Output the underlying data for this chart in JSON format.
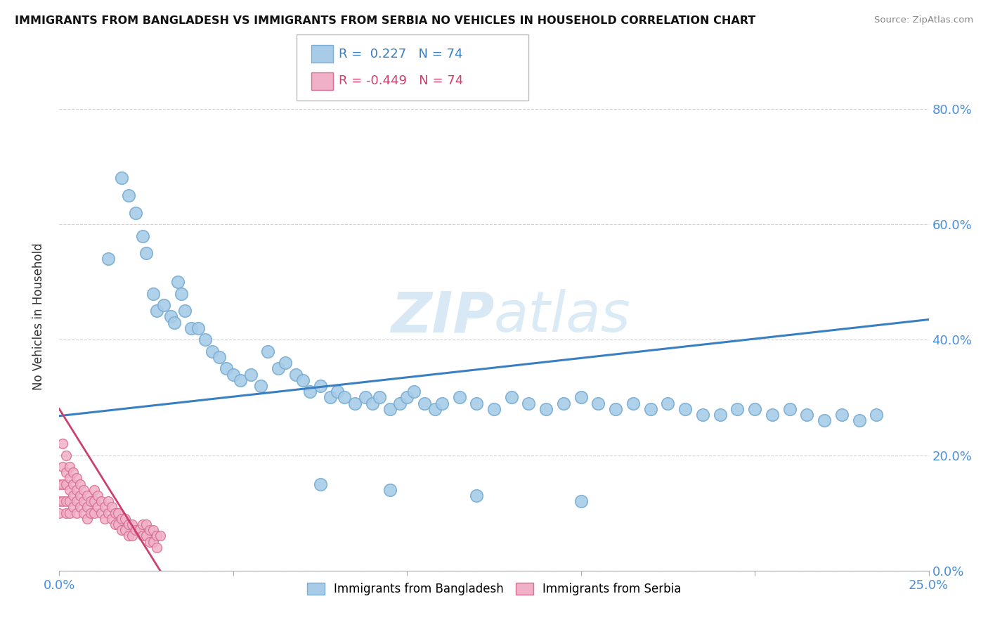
{
  "title": "IMMIGRANTS FROM BANGLADESH VS IMMIGRANTS FROM SERBIA NO VEHICLES IN HOUSEHOLD CORRELATION CHART",
  "source": "Source: ZipAtlas.com",
  "ylabel_label": "No Vehicles in Household",
  "r_bangladesh": 0.227,
  "r_serbia": -0.449,
  "n_bangladesh": 74,
  "n_serbia": 74,
  "xlim": [
    0.0,
    0.25
  ],
  "ylim": [
    0.0,
    0.88
  ],
  "watermark_zip": "ZIP",
  "watermark_atlas": "atlas",
  "legend_blue_label": "Immigrants from Bangladesh",
  "legend_pink_label": "Immigrants from Serbia",
  "blue_color": "#a8cce8",
  "blue_edge": "#7aaed4",
  "pink_color": "#f0b0c8",
  "pink_edge": "#d87090",
  "blue_line_color": "#3a7fc1",
  "pink_line_color": "#cc4070",
  "grid_color": "#cccccc",
  "y_ticks": [
    0.0,
    0.2,
    0.4,
    0.6,
    0.8
  ],
  "x_tick_positions": [
    0.0,
    0.05,
    0.1,
    0.15,
    0.2,
    0.25
  ],
  "bang_x": [
    0.014,
    0.018,
    0.02,
    0.022,
    0.024,
    0.025,
    0.027,
    0.028,
    0.03,
    0.032,
    0.033,
    0.034,
    0.035,
    0.036,
    0.038,
    0.04,
    0.042,
    0.044,
    0.046,
    0.048,
    0.05,
    0.052,
    0.055,
    0.058,
    0.06,
    0.063,
    0.065,
    0.068,
    0.07,
    0.072,
    0.075,
    0.078,
    0.08,
    0.082,
    0.085,
    0.088,
    0.09,
    0.092,
    0.095,
    0.098,
    0.1,
    0.102,
    0.105,
    0.108,
    0.11,
    0.115,
    0.12,
    0.125,
    0.13,
    0.135,
    0.14,
    0.145,
    0.15,
    0.155,
    0.16,
    0.165,
    0.17,
    0.175,
    0.18,
    0.185,
    0.19,
    0.195,
    0.2,
    0.205,
    0.21,
    0.215,
    0.22,
    0.225,
    0.23,
    0.235,
    0.15,
    0.12,
    0.095,
    0.075
  ],
  "bang_y": [
    0.54,
    0.68,
    0.65,
    0.62,
    0.58,
    0.55,
    0.48,
    0.45,
    0.46,
    0.44,
    0.43,
    0.5,
    0.48,
    0.45,
    0.42,
    0.42,
    0.4,
    0.38,
    0.37,
    0.35,
    0.34,
    0.33,
    0.34,
    0.32,
    0.38,
    0.35,
    0.36,
    0.34,
    0.33,
    0.31,
    0.32,
    0.3,
    0.31,
    0.3,
    0.29,
    0.3,
    0.29,
    0.3,
    0.28,
    0.29,
    0.3,
    0.31,
    0.29,
    0.28,
    0.29,
    0.3,
    0.29,
    0.28,
    0.3,
    0.29,
    0.28,
    0.29,
    0.3,
    0.29,
    0.28,
    0.29,
    0.28,
    0.29,
    0.28,
    0.27,
    0.27,
    0.28,
    0.28,
    0.27,
    0.28,
    0.27,
    0.26,
    0.27,
    0.26,
    0.27,
    0.12,
    0.13,
    0.14,
    0.15
  ],
  "serb_x": [
    0.0,
    0.0,
    0.0,
    0.001,
    0.001,
    0.001,
    0.001,
    0.002,
    0.002,
    0.002,
    0.002,
    0.002,
    0.003,
    0.003,
    0.003,
    0.003,
    0.003,
    0.004,
    0.004,
    0.004,
    0.004,
    0.005,
    0.005,
    0.005,
    0.005,
    0.006,
    0.006,
    0.006,
    0.007,
    0.007,
    0.007,
    0.008,
    0.008,
    0.008,
    0.009,
    0.009,
    0.01,
    0.01,
    0.01,
    0.011,
    0.011,
    0.012,
    0.012,
    0.013,
    0.013,
    0.014,
    0.014,
    0.015,
    0.015,
    0.016,
    0.016,
    0.017,
    0.017,
    0.018,
    0.018,
    0.019,
    0.019,
    0.02,
    0.02,
    0.021,
    0.021,
    0.022,
    0.023,
    0.024,
    0.024,
    0.025,
    0.025,
    0.026,
    0.026,
    0.027,
    0.027,
    0.028,
    0.028,
    0.029
  ],
  "serb_y": [
    0.15,
    0.12,
    0.1,
    0.22,
    0.18,
    0.15,
    0.12,
    0.2,
    0.17,
    0.15,
    0.12,
    0.1,
    0.18,
    0.16,
    0.14,
    0.12,
    0.1,
    0.17,
    0.15,
    0.13,
    0.11,
    0.16,
    0.14,
    0.12,
    0.1,
    0.15,
    0.13,
    0.11,
    0.14,
    0.12,
    0.1,
    0.13,
    0.11,
    0.09,
    0.12,
    0.1,
    0.14,
    0.12,
    0.1,
    0.13,
    0.11,
    0.12,
    0.1,
    0.11,
    0.09,
    0.12,
    0.1,
    0.11,
    0.09,
    0.1,
    0.08,
    0.1,
    0.08,
    0.09,
    0.07,
    0.09,
    0.07,
    0.08,
    0.06,
    0.08,
    0.06,
    0.07,
    0.07,
    0.08,
    0.06,
    0.08,
    0.06,
    0.07,
    0.05,
    0.07,
    0.05,
    0.06,
    0.04,
    0.06
  ]
}
